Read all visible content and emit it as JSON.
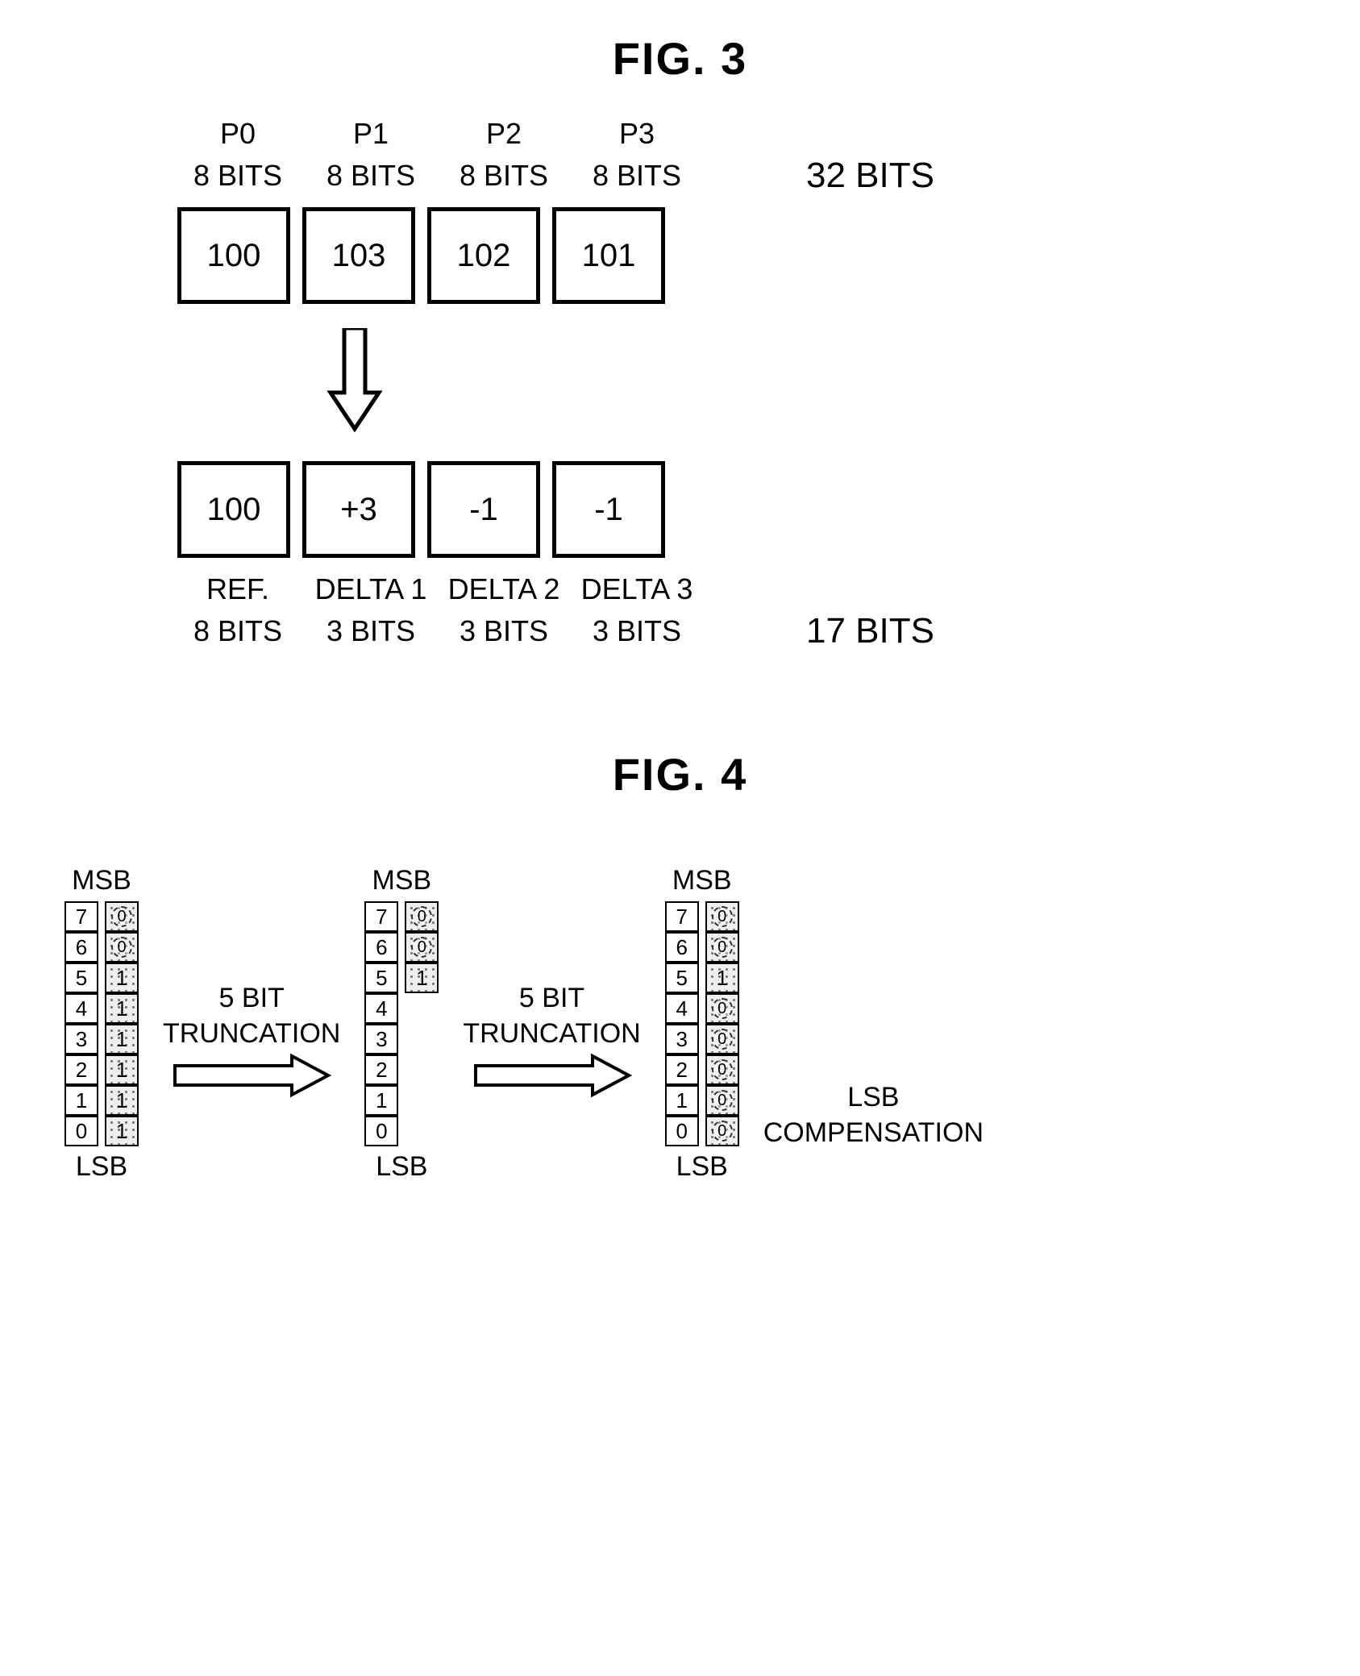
{
  "fig3": {
    "title": "FIG. 3",
    "top": {
      "headers": [
        "P0",
        "P1",
        "P2",
        "P3"
      ],
      "bits": [
        "8 BITS",
        "8 BITS",
        "8 BITS",
        "8 BITS"
      ],
      "values": [
        "100",
        "103",
        "102",
        "101"
      ],
      "total": "32 BITS"
    },
    "bottom": {
      "values": [
        "100",
        "+3",
        "-1",
        "-1"
      ],
      "labels": [
        "REF.",
        "DELTA 1",
        "DELTA 2",
        "DELTA 3"
      ],
      "bits": [
        "8 BITS",
        "3 BITS",
        "3 BITS",
        "3 BITS"
      ],
      "total": "17 BITS"
    }
  },
  "fig4": {
    "title": "FIG. 4",
    "msb": "MSB",
    "lsb": "LSB",
    "arrow_label_1": "5 BIT",
    "arrow_label_2": "TRUNCATION",
    "comp_1": "LSB",
    "comp_2": "COMPENSATION",
    "stack1": {
      "index": [
        "7",
        "6",
        "5",
        "4",
        "3",
        "2",
        "1",
        "0"
      ],
      "data": [
        "0",
        "0",
        "1",
        "1",
        "1",
        "1",
        "1",
        "1"
      ],
      "data_circled": [
        true,
        true,
        false,
        false,
        false,
        false,
        false,
        false
      ]
    },
    "stack2": {
      "index": [
        "7",
        "6",
        "5",
        "4",
        "3",
        "2",
        "1",
        "0"
      ],
      "data": [
        "0",
        "0",
        "1"
      ],
      "data_circled": [
        true,
        true,
        false
      ]
    },
    "stack3": {
      "index": [
        "7",
        "6",
        "5",
        "4",
        "3",
        "2",
        "1",
        "0"
      ],
      "data": [
        "0",
        "0",
        "1",
        "0",
        "0",
        "0",
        "0",
        "0"
      ],
      "data_circled": [
        true,
        true,
        false,
        true,
        true,
        true,
        true,
        true
      ]
    }
  }
}
